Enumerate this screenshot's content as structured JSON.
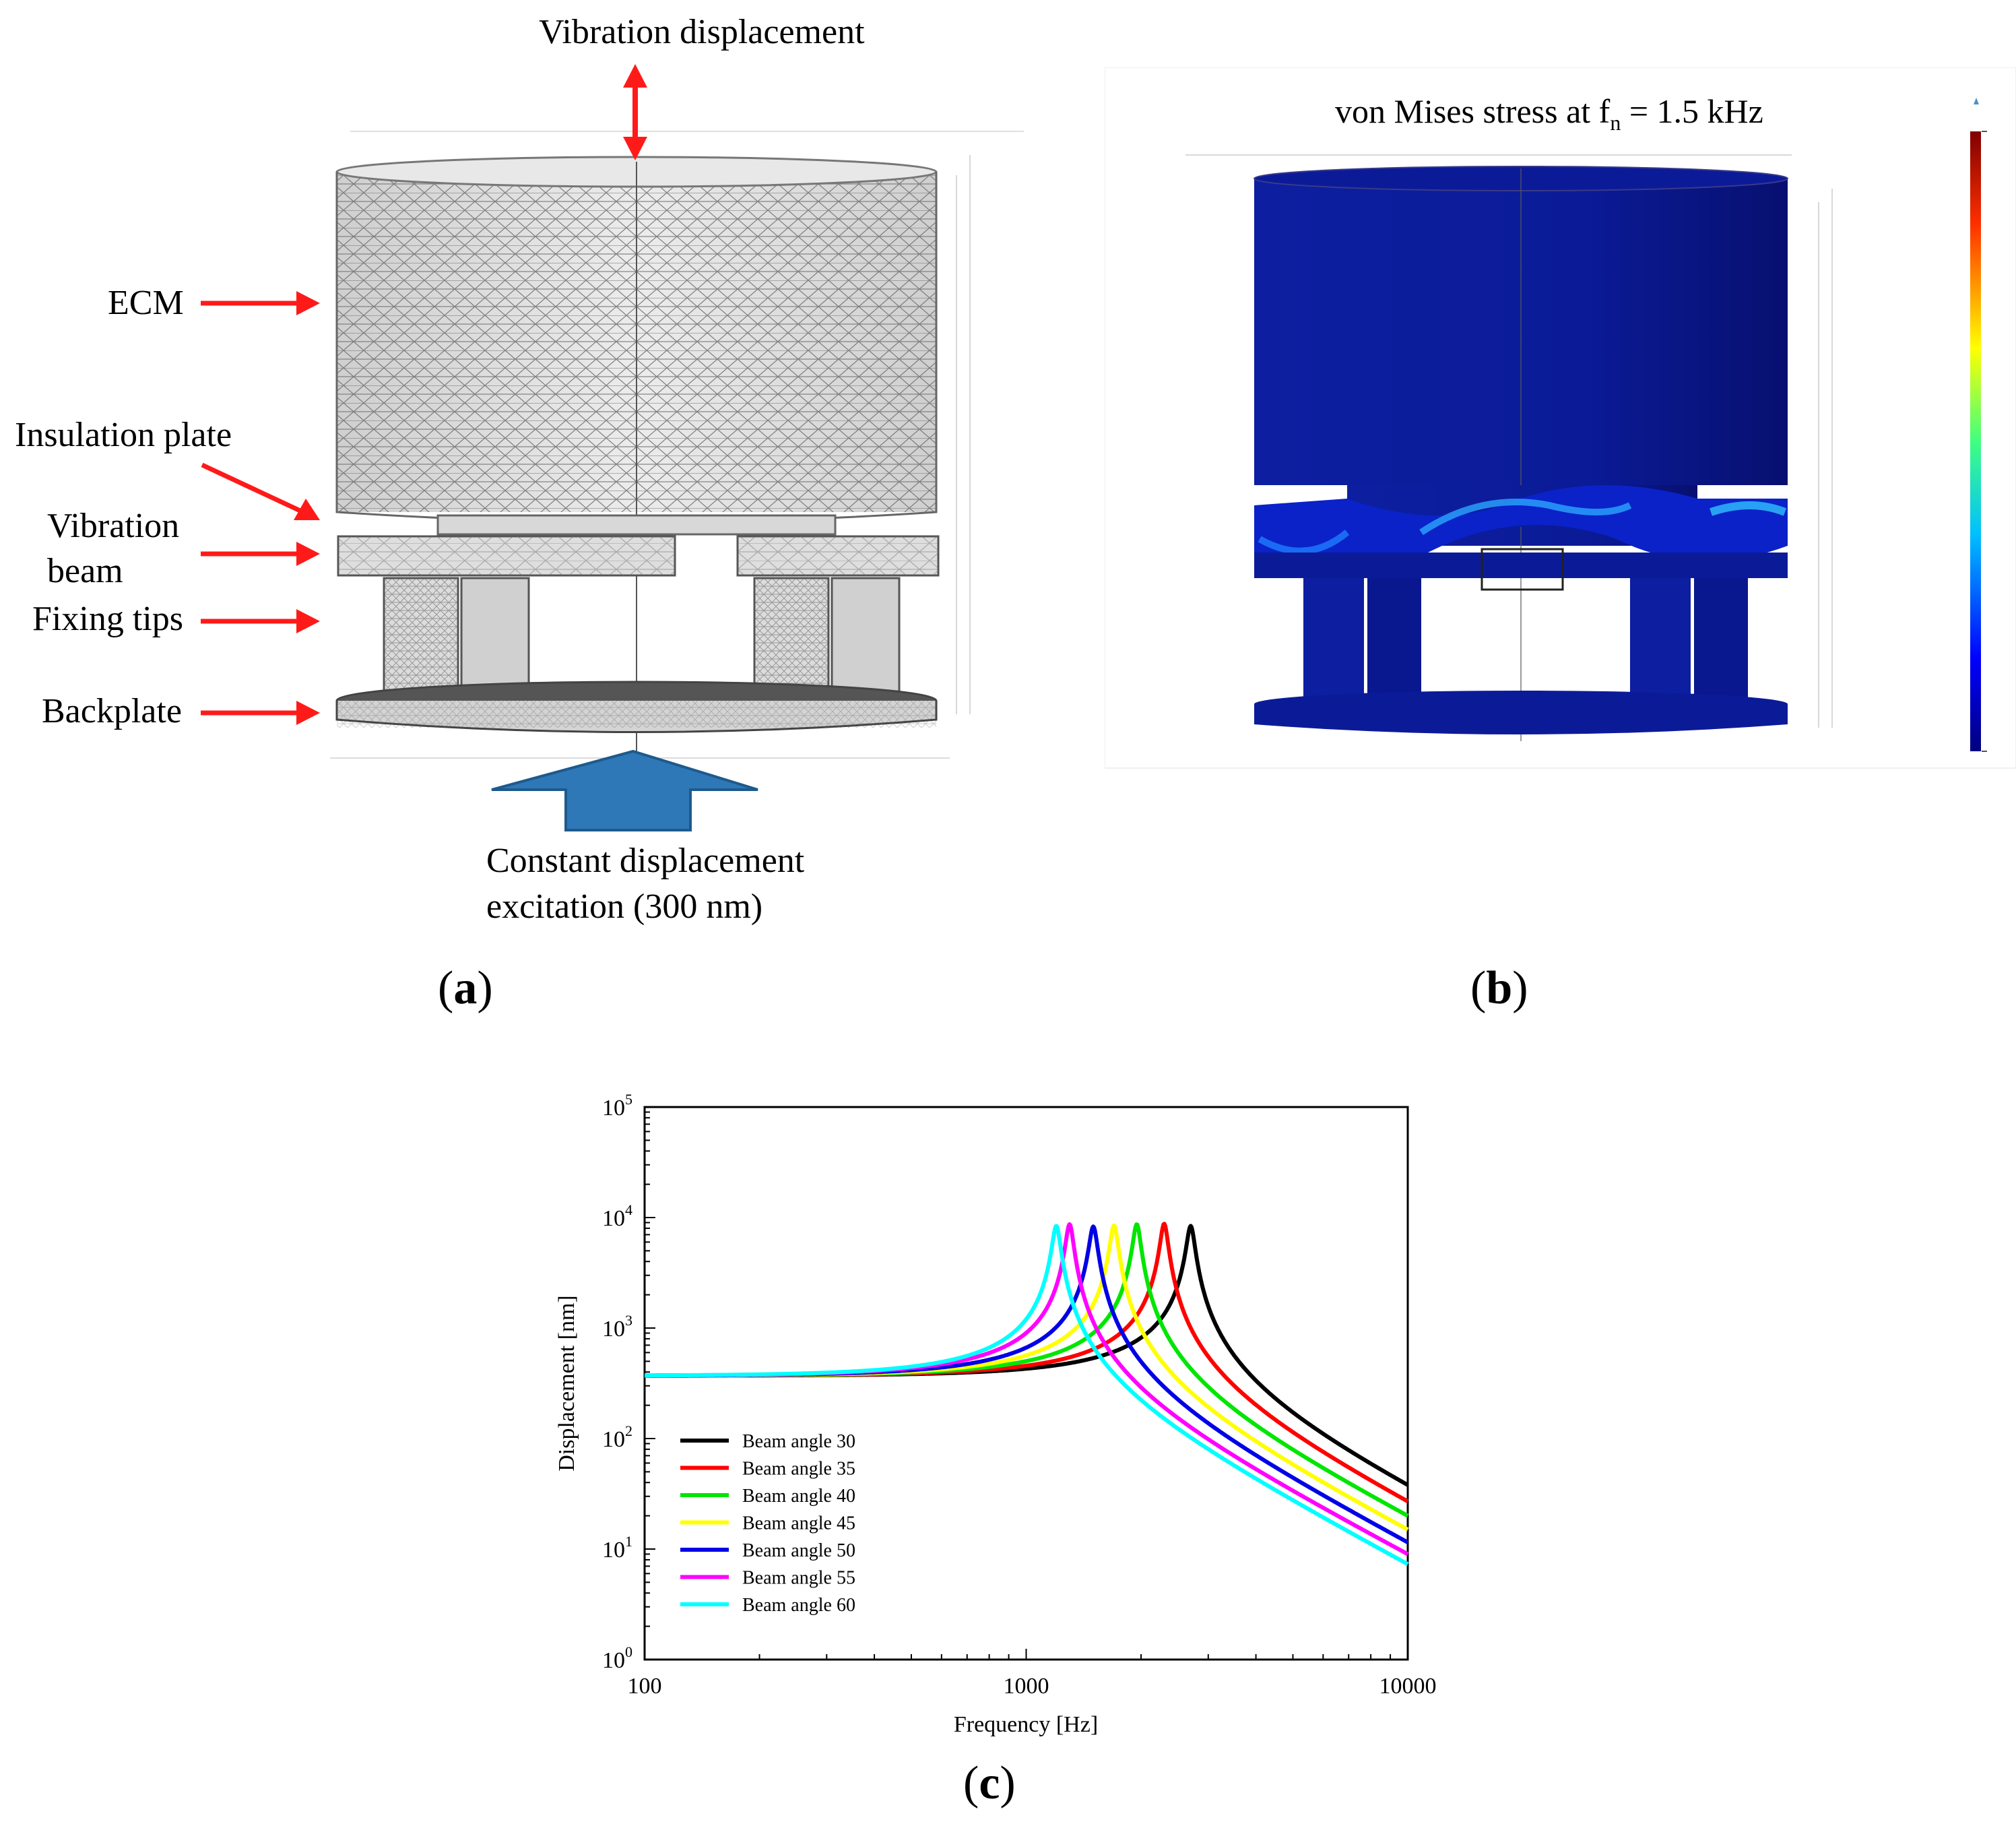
{
  "panel_a": {
    "label": "a",
    "top_annotation": "Vibration displacement",
    "parts": [
      "ECM",
      "Insulation plate",
      "Vibration",
      "beam",
      "Fixing tips",
      "Backplate"
    ],
    "excitation_line1": "Constant displacement",
    "excitation_line2": "excitation (300 nm)"
  },
  "panel_b": {
    "label": "b",
    "title_prefix": "von Mises stress at f",
    "title_subscript": "n",
    "title_suffix": " = 1.5 kHz"
  },
  "panel_c": {
    "label": "c"
  },
  "colors": {
    "arrow_red": "#ff1a1a",
    "excitation_arrow": "#2e78b7",
    "stress_blue": "#0a1a9a"
  },
  "chart_data": {
    "type": "line",
    "xlabel": "Frequency [Hz]",
    "ylabel": "Displacement [nm]",
    "x_scale": "log",
    "y_scale": "log",
    "xlim": [
      100,
      10000
    ],
    "ylim": [
      1,
      100000
    ],
    "x_ticks": [
      "100",
      "1000",
      "10000"
    ],
    "y_tick_bases": [
      "10",
      "10",
      "10",
      "10",
      "10",
      "10"
    ],
    "y_tick_exps": [
      "0",
      "1",
      "2",
      "3",
      "4",
      "5"
    ],
    "legend_position": "lower-left",
    "grid": false,
    "static_displacement": 370,
    "series": [
      {
        "name": "Beam angle 30",
        "color": "#000000",
        "fn": 2700,
        "peak": 8400,
        "end": 38
      },
      {
        "name": "Beam angle 35",
        "color": "#ff0000",
        "fn": 2300,
        "peak": 8800,
        "end": 27
      },
      {
        "name": "Beam angle 40",
        "color": "#00e600",
        "fn": 1950,
        "peak": 8700,
        "end": 20
      },
      {
        "name": "Beam angle 45",
        "color": "#ffff00",
        "fn": 1700,
        "peak": 8500,
        "end": 15
      },
      {
        "name": "Beam angle 50",
        "color": "#0000e6",
        "fn": 1500,
        "peak": 8300,
        "end": 11.5
      },
      {
        "name": "Beam angle 55",
        "color": "#ff00ff",
        "fn": 1300,
        "peak": 8700,
        "end": 9
      },
      {
        "name": "Beam angle 60",
        "color": "#00ffff",
        "fn": 1200,
        "peak": 8400,
        "end": 7.3
      }
    ]
  }
}
